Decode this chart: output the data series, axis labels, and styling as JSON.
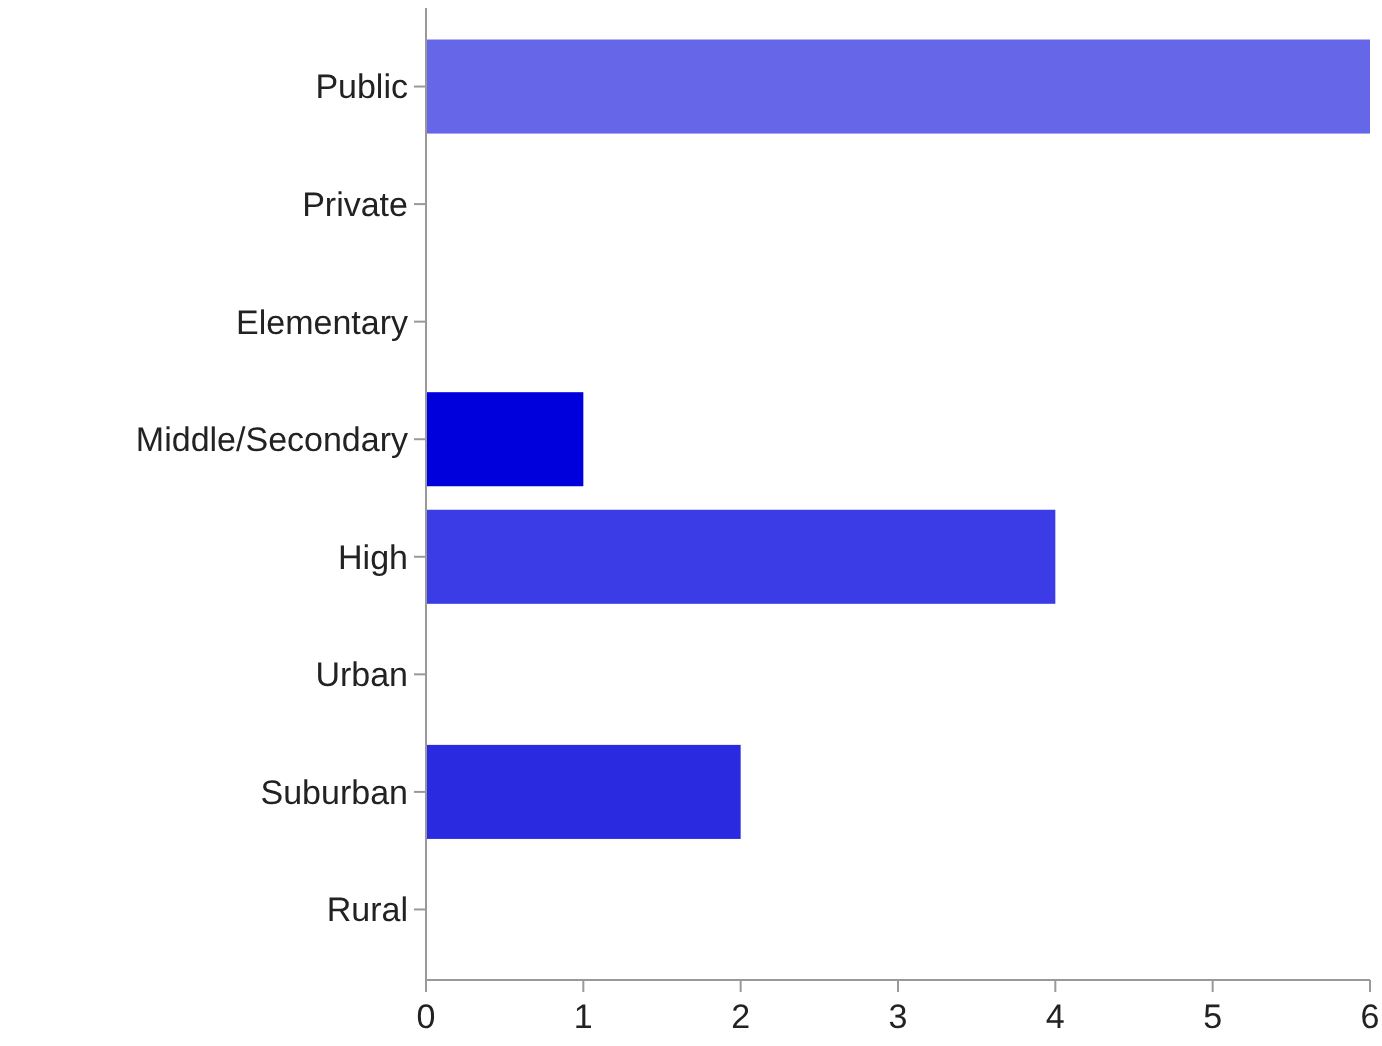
{
  "chart_data": {
    "type": "bar",
    "orientation": "horizontal",
    "categories": [
      "Public",
      "Private",
      "Elementary",
      "Middle/Secondary",
      "High",
      "Urban",
      "Suburban",
      "Rural"
    ],
    "values": [
      6,
      0,
      0,
      1,
      4,
      0,
      2,
      0
    ],
    "colors": [
      "#6666e8",
      "#0000dd",
      "#0000dd",
      "#0000dd",
      "#3c3ce6",
      "#0000dd",
      "#2a2ae0",
      "#0000dd"
    ],
    "xlim": [
      0,
      6
    ],
    "xticks": [
      0,
      1,
      2,
      3,
      4,
      5,
      6
    ],
    "grid": false
  }
}
